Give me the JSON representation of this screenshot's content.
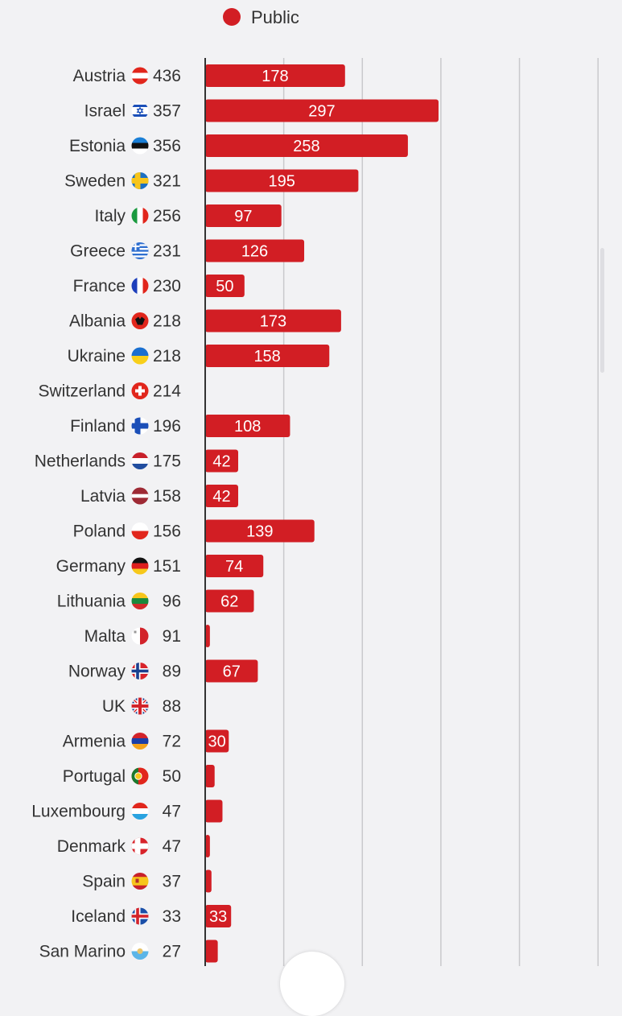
{
  "legend": {
    "label": "Public",
    "color": "#d21e24"
  },
  "chart_data": {
    "type": "bar",
    "orientation": "horizontal",
    "series": [
      {
        "name": "Public",
        "color": "#d21e24"
      }
    ],
    "xlim": [
      0,
      490
    ],
    "grid": true,
    "legend_position": "top",
    "rows": [
      {
        "country": "Austria",
        "flag": "at",
        "total": 436,
        "value": 178
      },
      {
        "country": "Israel",
        "flag": "il",
        "total": 357,
        "value": 297
      },
      {
        "country": "Estonia",
        "flag": "ee",
        "total": 356,
        "value": 258
      },
      {
        "country": "Sweden",
        "flag": "se",
        "total": 321,
        "value": 195
      },
      {
        "country": "Italy",
        "flag": "it",
        "total": 256,
        "value": 97
      },
      {
        "country": "Greece",
        "flag": "gr",
        "total": 231,
        "value": 126
      },
      {
        "country": "France",
        "flag": "fr",
        "total": 230,
        "value": 50
      },
      {
        "country": "Albania",
        "flag": "al",
        "total": 218,
        "value": 173
      },
      {
        "country": "Ukraine",
        "flag": "ua",
        "total": 218,
        "value": 158
      },
      {
        "country": "Switzerland",
        "flag": "ch",
        "total": 214,
        "value": 0
      },
      {
        "country": "Finland",
        "flag": "fi",
        "total": 196,
        "value": 108
      },
      {
        "country": "Netherlands",
        "flag": "nl",
        "total": 175,
        "value": 42
      },
      {
        "country": "Latvia",
        "flag": "lv",
        "total": 158,
        "value": 42
      },
      {
        "country": "Poland",
        "flag": "pl",
        "total": 156,
        "value": 139
      },
      {
        "country": "Germany",
        "flag": "de",
        "total": 151,
        "value": 74
      },
      {
        "country": "Lithuania",
        "flag": "lt",
        "total": 96,
        "value": 62
      },
      {
        "country": "Malta",
        "flag": "mt",
        "total": 91,
        "value": 6
      },
      {
        "country": "Norway",
        "flag": "no",
        "total": 89,
        "value": 67
      },
      {
        "country": "UK",
        "flag": "uk",
        "total": 88,
        "value": 0
      },
      {
        "country": "Armenia",
        "flag": "am",
        "total": 72,
        "value": 30
      },
      {
        "country": "Portugal",
        "flag": "pt",
        "total": 50,
        "value": 12
      },
      {
        "country": "Luxembourg",
        "flag": "lu",
        "total": 47,
        "value": 22
      },
      {
        "country": "Denmark",
        "flag": "dk",
        "total": 47,
        "value": 6
      },
      {
        "country": "Spain",
        "flag": "es",
        "total": 37,
        "value": 8
      },
      {
        "country": "Iceland",
        "flag": "is",
        "total": 33,
        "value": 33
      },
      {
        "country": "San Marino",
        "flag": "sm",
        "total": 27,
        "value": 16
      }
    ]
  }
}
